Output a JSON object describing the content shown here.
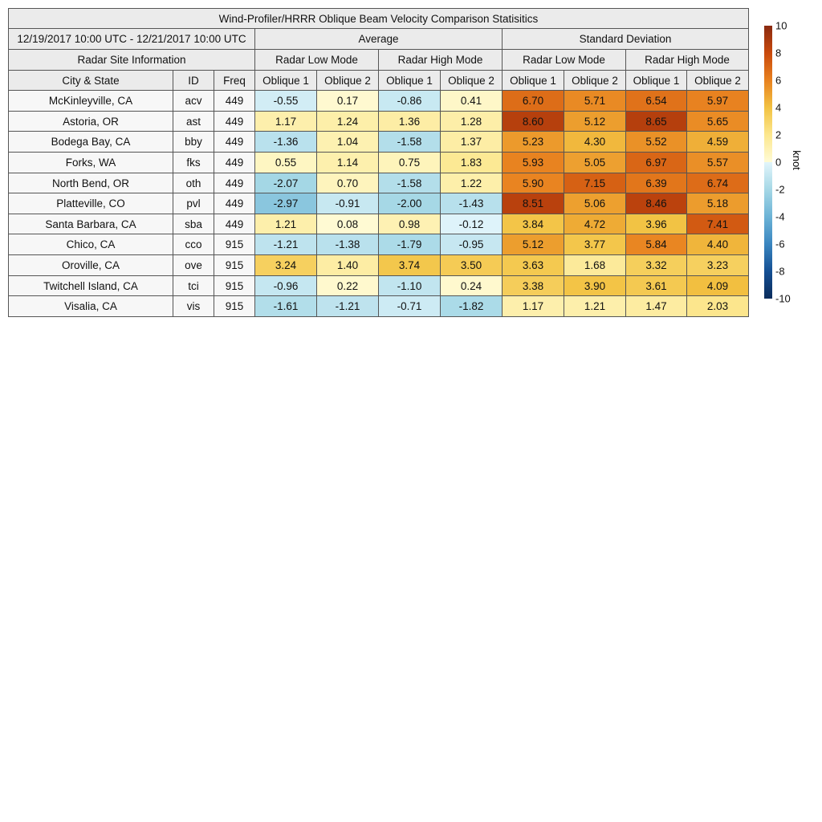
{
  "chart_data": {
    "type": "heatmap",
    "title": "Wind-Profiler/HRRR Oblique Beam Velocity Comparison Statisitics",
    "period": "12/19/2017 10:00 UTC - 12/21/2017 10:00 UTC",
    "site_group_label": "Radar Site Information",
    "site_columns": [
      "City & State",
      "ID",
      "Freq"
    ],
    "stat_groups": [
      "Average",
      "Standard Deviation"
    ],
    "mode_groups": [
      "Radar Low Mode",
      "Radar High Mode",
      "Radar Low Mode",
      "Radar High Mode"
    ],
    "beam_columns": [
      "Oblique 1",
      "Oblique 2",
      "Oblique 1",
      "Oblique 2",
      "Oblique 1",
      "Oblique 2",
      "Oblique 1",
      "Oblique 2"
    ],
    "rows": [
      {
        "city": "McKinleyville, CA",
        "id": "acv",
        "freq": "449",
        "values": [
          -0.55,
          0.17,
          -0.86,
          0.41,
          6.7,
          5.71,
          6.54,
          5.97
        ]
      },
      {
        "city": "Astoria, OR",
        "id": "ast",
        "freq": "449",
        "values": [
          1.17,
          1.24,
          1.36,
          1.28,
          8.6,
          5.12,
          8.65,
          5.65
        ]
      },
      {
        "city": "Bodega Bay, CA",
        "id": "bby",
        "freq": "449",
        "values": [
          -1.36,
          1.04,
          -1.58,
          1.37,
          5.23,
          4.3,
          5.52,
          4.59
        ]
      },
      {
        "city": "Forks, WA",
        "id": "fks",
        "freq": "449",
        "values": [
          0.55,
          1.14,
          0.75,
          1.83,
          5.93,
          5.05,
          6.97,
          5.57
        ]
      },
      {
        "city": "North Bend, OR",
        "id": "oth",
        "freq": "449",
        "values": [
          -2.07,
          0.7,
          -1.58,
          1.22,
          5.9,
          7.15,
          6.39,
          6.74
        ]
      },
      {
        "city": "Platteville, CO",
        "id": "pvl",
        "freq": "449",
        "values": [
          -2.97,
          -0.91,
          -2.0,
          -1.43,
          8.51,
          5.06,
          8.46,
          5.18
        ]
      },
      {
        "city": "Santa Barbara, CA",
        "id": "sba",
        "freq": "449",
        "values": [
          1.21,
          0.08,
          0.98,
          -0.12,
          3.84,
          4.72,
          3.96,
          7.41
        ]
      },
      {
        "city": "Chico, CA",
        "id": "cco",
        "freq": "915",
        "values": [
          -1.21,
          -1.38,
          -1.79,
          -0.95,
          5.12,
          3.77,
          5.84,
          4.4
        ]
      },
      {
        "city": "Oroville, CA",
        "id": "ove",
        "freq": "915",
        "values": [
          3.24,
          1.4,
          3.74,
          3.5,
          3.63,
          1.68,
          3.32,
          3.23
        ]
      },
      {
        "city": "Twitchell Island, CA",
        "id": "tci",
        "freq": "915",
        "values": [
          -0.96,
          0.22,
          -1.1,
          0.24,
          3.38,
          3.9,
          3.61,
          4.09
        ]
      },
      {
        "city": "Visalia, CA",
        "id": "vis",
        "freq": "915",
        "values": [
          -1.61,
          -1.21,
          -0.71,
          -1.82,
          1.17,
          1.21,
          1.47,
          2.03
        ]
      }
    ],
    "colorbar": {
      "label": "knot",
      "range": [
        -10,
        10
      ],
      "ticks": [
        "10",
        "8",
        "6",
        "4",
        "2",
        "0",
        "-2",
        "-4",
        "-6",
        "-8",
        "-10"
      ],
      "stops": [
        [
          -10,
          "#0b2d5c"
        ],
        [
          -8,
          "#144f93"
        ],
        [
          -6,
          "#3a86c0"
        ],
        [
          -4,
          "#6cb3d6"
        ],
        [
          -2,
          "#a6d8e6"
        ],
        [
          0,
          "#e2f5fb"
        ],
        [
          0.01,
          "#fffbd6"
        ],
        [
          2,
          "#fce78e"
        ],
        [
          4,
          "#f2c242"
        ],
        [
          6,
          "#e8811f"
        ],
        [
          8,
          "#c9490c"
        ],
        [
          10,
          "#8a2a10"
        ]
      ]
    }
  }
}
